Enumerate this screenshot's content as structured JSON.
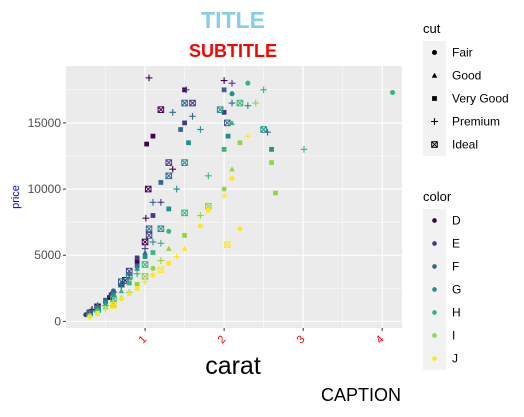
{
  "chart_data": {
    "type": "scatter",
    "title": "TITLE",
    "subtitle": "SUBTITLE",
    "caption": "CAPTION",
    "xlabel": "carat",
    "ylabel": "price",
    "xlim": [
      0.0,
      4.25
    ],
    "ylim": [
      -500,
      19300
    ],
    "x_ticks": [
      1,
      2,
      3,
      4
    ],
    "x_tick_labels": [
      "1",
      "2",
      "3",
      "4"
    ],
    "y_ticks": [
      0,
      5000,
      10000,
      15000
    ],
    "y_tick_labels": [
      "0",
      "5000",
      "10000",
      "15000"
    ],
    "grid": true,
    "colors": {
      "title": "#87CEEB",
      "subtitle": "#FF0000",
      "ylabel": "#0000FF",
      "x_ticks": "#FF0000",
      "panel": "#EBEBEB",
      "grid": "#FFFFFF",
      "legend_key": "#F2F2F2"
    },
    "legend_position": "right",
    "legends": [
      {
        "title": "cut",
        "aesthetic": "shape",
        "items": [
          {
            "label": "Fair",
            "shape": "circle"
          },
          {
            "label": "Good",
            "shape": "triangle"
          },
          {
            "label": "Very Good",
            "shape": "square"
          },
          {
            "label": "Premium",
            "shape": "plus"
          },
          {
            "label": "Ideal",
            "shape": "square-cross"
          }
        ]
      },
      {
        "title": "color",
        "aesthetic": "colour",
        "items": [
          {
            "label": "D",
            "color": "#440154"
          },
          {
            "label": "E",
            "color": "#443A83"
          },
          {
            "label": "F",
            "color": "#31688E"
          },
          {
            "label": "G",
            "color": "#21908C"
          },
          {
            "label": "H",
            "color": "#35B779"
          },
          {
            "label": "I",
            "color": "#8FD744"
          },
          {
            "label": "J",
            "color": "#FDE725"
          }
        ]
      }
    ],
    "series": [
      {
        "name": "D",
        "points": [
          [
            0.3,
            600
          ],
          [
            0.33,
            900
          ],
          [
            0.4,
            1100
          ],
          [
            0.5,
            1500
          ],
          [
            0.55,
            1800
          ],
          [
            0.6,
            2200
          ],
          [
            0.7,
            2800
          ],
          [
            0.75,
            3100
          ],
          [
            0.8,
            3500
          ],
          [
            0.9,
            4500
          ],
          [
            1.0,
            6000
          ],
          [
            1.01,
            7800
          ],
          [
            1.02,
            13400
          ],
          [
            1.04,
            10000
          ],
          [
            1.05,
            18400
          ],
          [
            1.1,
            14000
          ],
          [
            1.2,
            16000
          ],
          [
            1.35,
            11500
          ],
          [
            1.5,
            17500
          ],
          [
            2.0,
            18200
          ]
        ]
      },
      {
        "name": "E",
        "points": [
          [
            0.25,
            500
          ],
          [
            0.3,
            700
          ],
          [
            0.32,
            800
          ],
          [
            0.4,
            1000
          ],
          [
            0.5,
            1600
          ],
          [
            0.57,
            2000
          ],
          [
            0.7,
            2700
          ],
          [
            0.8,
            3800
          ],
          [
            0.9,
            4800
          ],
          [
            1.0,
            5500
          ],
          [
            1.05,
            6500
          ],
          [
            1.1,
            8000
          ],
          [
            1.2,
            9000
          ],
          [
            1.3,
            12000
          ],
          [
            1.5,
            15000
          ],
          [
            1.52,
            17500
          ],
          [
            1.6,
            16500
          ],
          [
            2.0,
            15800
          ],
          [
            2.1,
            18000
          ]
        ]
      },
      {
        "name": "F",
        "points": [
          [
            0.3,
            650
          ],
          [
            0.4,
            1200
          ],
          [
            0.5,
            1600
          ],
          [
            0.6,
            2300
          ],
          [
            0.7,
            3000
          ],
          [
            0.8,
            3600
          ],
          [
            0.9,
            4200
          ],
          [
            1.0,
            5200
          ],
          [
            1.05,
            7000
          ],
          [
            1.1,
            9000
          ],
          [
            1.2,
            10500
          ],
          [
            1.3,
            11000
          ],
          [
            1.35,
            15800
          ],
          [
            1.45,
            14500
          ],
          [
            1.5,
            16500
          ],
          [
            1.6,
            15500
          ],
          [
            2.0,
            17500
          ],
          [
            2.04,
            15000
          ],
          [
            2.1,
            16500
          ],
          [
            2.55,
            14300
          ]
        ]
      },
      {
        "name": "G",
        "points": [
          [
            0.3,
            550
          ],
          [
            0.4,
            900
          ],
          [
            0.5,
            1400
          ],
          [
            0.6,
            2000
          ],
          [
            0.7,
            2600
          ],
          [
            0.8,
            3400
          ],
          [
            0.9,
            4000
          ],
          [
            1.0,
            4900
          ],
          [
            1.1,
            6000
          ],
          [
            1.2,
            7000
          ],
          [
            1.3,
            8500
          ],
          [
            1.4,
            10000
          ],
          [
            1.5,
            12000
          ],
          [
            1.55,
            13500
          ],
          [
            1.7,
            14500
          ],
          [
            1.95,
            16000
          ],
          [
            2.05,
            14000
          ],
          [
            2.1,
            17200
          ],
          [
            2.3,
            16300
          ],
          [
            2.5,
            14500
          ],
          [
            2.6,
            13000
          ]
        ]
      },
      {
        "name": "H",
        "points": [
          [
            0.3,
            450
          ],
          [
            0.4,
            850
          ],
          [
            0.5,
            1200
          ],
          [
            0.6,
            1700
          ],
          [
            0.7,
            2300
          ],
          [
            0.8,
            2900
          ],
          [
            0.9,
            3600
          ],
          [
            1.0,
            4300
          ],
          [
            1.1,
            5200
          ],
          [
            1.2,
            5900
          ],
          [
            1.3,
            6800
          ],
          [
            1.5,
            8200
          ],
          [
            1.8,
            11000
          ],
          [
            2.0,
            13000
          ],
          [
            2.1,
            15000
          ],
          [
            2.2,
            16500
          ],
          [
            2.3,
            18000
          ],
          [
            2.5,
            17500
          ],
          [
            3.01,
            13000
          ],
          [
            4.13,
            17300
          ]
        ]
      },
      {
        "name": "I",
        "points": [
          [
            0.3,
            400
          ],
          [
            0.4,
            650
          ],
          [
            0.5,
            1000
          ],
          [
            0.6,
            1300
          ],
          [
            0.7,
            1800
          ],
          [
            0.8,
            2200
          ],
          [
            0.9,
            2800
          ],
          [
            1.0,
            3400
          ],
          [
            1.1,
            4000
          ],
          [
            1.2,
            4600
          ],
          [
            1.3,
            5500
          ],
          [
            1.5,
            6500
          ],
          [
            1.7,
            8000
          ],
          [
            1.8,
            8700
          ],
          [
            2.0,
            10000
          ],
          [
            2.1,
            11500
          ],
          [
            2.2,
            13500
          ],
          [
            2.4,
            16500
          ],
          [
            2.6,
            12000
          ],
          [
            2.65,
            9700
          ]
        ]
      },
      {
        "name": "J",
        "points": [
          [
            0.3,
            350
          ],
          [
            0.4,
            600
          ],
          [
            0.5,
            900
          ],
          [
            0.6,
            1200
          ],
          [
            0.7,
            1700
          ],
          [
            0.8,
            2100
          ],
          [
            0.9,
            2500
          ],
          [
            1.0,
            3000
          ],
          [
            1.1,
            3500
          ],
          [
            1.2,
            3900
          ],
          [
            1.3,
            4400
          ],
          [
            1.4,
            4900
          ],
          [
            1.5,
            5500
          ],
          [
            1.7,
            7200
          ],
          [
            1.8,
            8400
          ],
          [
            2.0,
            9500
          ],
          [
            2.04,
            5800
          ],
          [
            2.1,
            10800
          ],
          [
            2.2,
            7000
          ],
          [
            2.3,
            14000
          ]
        ]
      }
    ],
    "series_shapes": {
      "D": [
        "square",
        "plus",
        "square-cross",
        "circle",
        "square",
        "plus",
        "triangle",
        "square-cross",
        "plus",
        "square",
        "square-cross",
        "plus",
        "square",
        "square-cross",
        "plus",
        "square",
        "square-cross",
        "plus",
        "square",
        "plus"
      ],
      "E": [
        "circle",
        "square",
        "plus",
        "square-cross",
        "triangle",
        "square",
        "plus",
        "square-cross",
        "square",
        "plus",
        "square-cross",
        "square",
        "plus",
        "square-cross",
        "square",
        "plus",
        "square-cross",
        "square",
        "plus"
      ],
      "F": [
        "square-cross",
        "plus",
        "square",
        "circle",
        "square-cross",
        "plus",
        "square",
        "triangle",
        "square-cross",
        "plus",
        "square",
        "square-cross",
        "plus",
        "square",
        "square-cross",
        "plus",
        "square",
        "square-cross",
        "plus",
        "plus"
      ],
      "G": [
        "plus",
        "square-cross",
        "circle",
        "square",
        "plus",
        "square-cross",
        "triangle",
        "square",
        "plus",
        "square-cross",
        "square",
        "plus",
        "square-cross",
        "square",
        "plus",
        "square-cross",
        "square",
        "circle",
        "plus",
        "square-cross",
        "square"
      ],
      "H": [
        "square",
        "circle",
        "plus",
        "square-cross",
        "triangle",
        "square",
        "plus",
        "square-cross",
        "square",
        "plus",
        "circle",
        "square-cross",
        "plus",
        "square",
        "triangle",
        "square-cross",
        "circle",
        "plus",
        "plus",
        "circle"
      ],
      "I": [
        "plus",
        "square",
        "circle",
        "square-cross",
        "triangle",
        "plus",
        "square",
        "square-cross",
        "circle",
        "plus",
        "triangle",
        "square",
        "plus",
        "square-cross",
        "circle",
        "triangle",
        "square",
        "plus",
        "square",
        "square"
      ],
      "J": [
        "circle",
        "square",
        "plus",
        "square-cross",
        "circle",
        "triangle",
        "square",
        "plus",
        "circle",
        "square-cross",
        "square",
        "plus",
        "triangle",
        "circle",
        "square",
        "plus",
        "square-cross",
        "circle",
        "circle",
        "plus"
      ]
    }
  }
}
